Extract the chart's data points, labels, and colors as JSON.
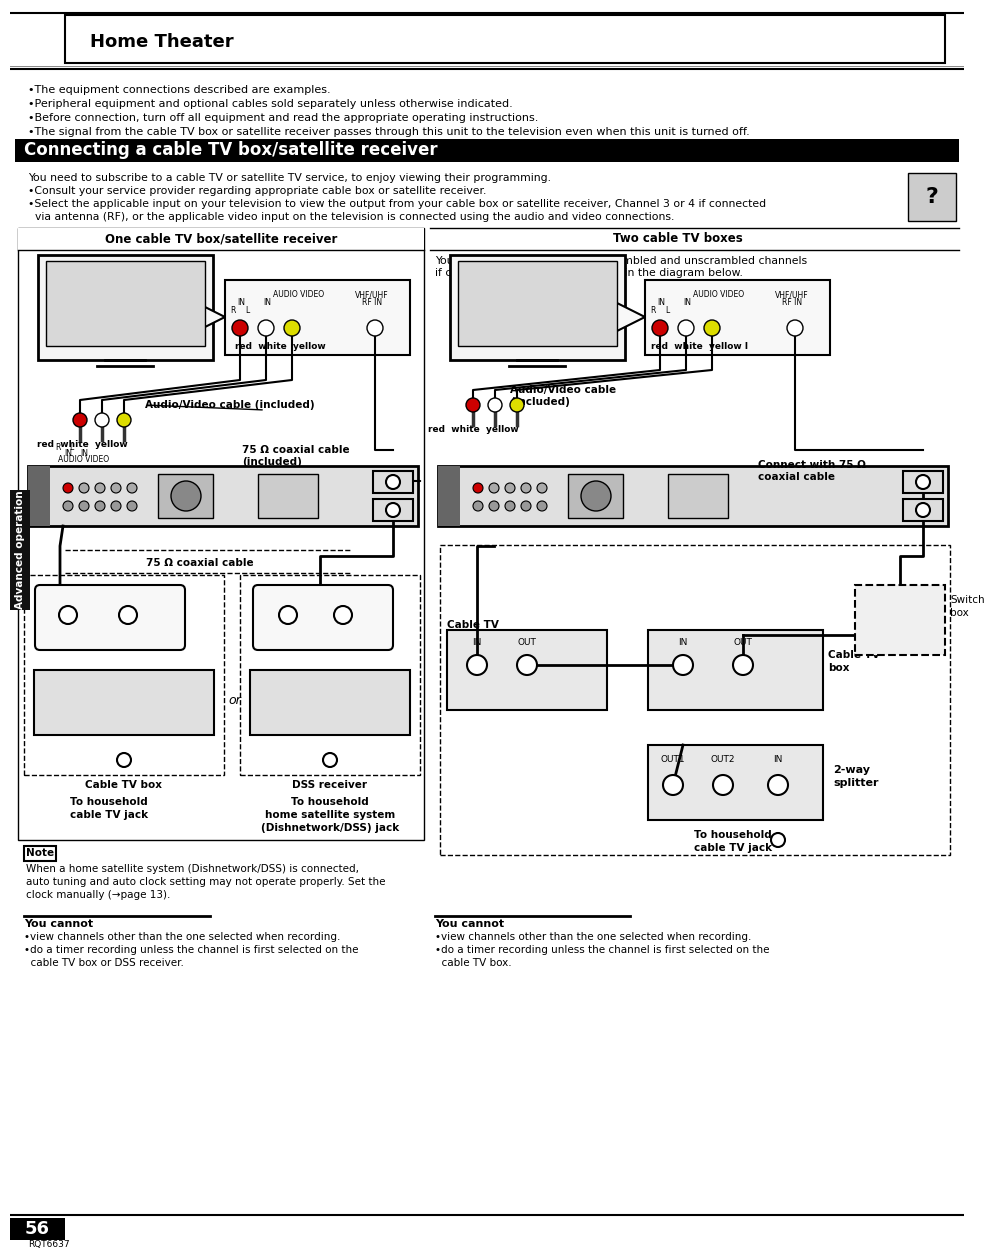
{
  "page_bg": "#ffffff",
  "header_text": "Home Theater",
  "section_bar_text": "Connecting a cable TV box/satellite receiver",
  "left_panel_title": "One cable TV box/satellite receiver",
  "right_panel_title": "Two cable TV boxes",
  "bullet_lines": [
    "•The equipment connections described are examples.",
    "•Peripheral equipment and optional cables sold separately unless otherwise indicated.",
    "•Before connection, turn off all equipment and read the appropriate operating instructions.",
    "•The signal from the cable TV box or satellite receiver passes through this unit to the television even when this unit is turned off."
  ],
  "intro_lines": [
    "You need to subscribe to a cable TV or satellite TV service, to enjoy viewing their programming.",
    "•Consult your service provider regarding appropriate cable box or satellite receiver.",
    "•Select the applicable input on your television to view the output from your cable box or satellite receiver, Channel 3 or 4 if connected",
    "  via antenna (RF), or the applicable video input on the television is connected using the audio and video connections."
  ],
  "left_note_title": "Note",
  "left_note_lines": [
    "When a home satellite system (Dishnetwork/DSS) is connected,",
    "auto tuning and auto clock setting may not operate properly. Set the",
    "clock manually (→page 13)."
  ],
  "left_youcannot_title": "You cannot",
  "left_youcannot_lines": [
    "•view channels other than the one selected when recording.",
    "•do a timer recording unless the channel is first selected on the",
    "  cable TV box or DSS receiver."
  ],
  "right_youcannot_title": "You cannot",
  "right_youcannot_lines": [
    "•view channels other than the one selected when recording.",
    "•do a timer recording unless the channel is first selected on the",
    "  cable TV box."
  ],
  "right_intro_lines": [
    "You can record and view both scrambled and unscrambled channels",
    "if connections are made as shown in the diagram below."
  ],
  "page_number": "56",
  "page_code": "RQT6637",
  "sidebar_text": "Advanced operation"
}
